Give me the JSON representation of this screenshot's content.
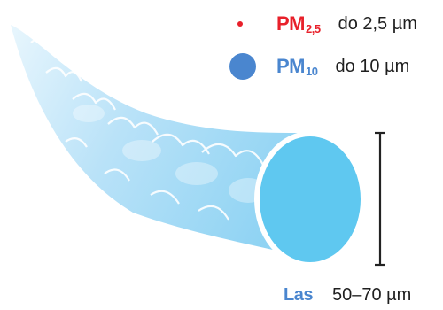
{
  "legend": {
    "pm25": {
      "label": "PM",
      "subscript": "2,5",
      "size_text": "do 2,5 µm",
      "color": "#e8202a"
    },
    "pm10": {
      "label": "PM",
      "subscript": "10",
      "size_text": "do 10 µm",
      "color": "#4a86cf"
    }
  },
  "hair": {
    "label": "Las",
    "size_text": "50–70 µm",
    "label_color": "#4a86cf",
    "fill_color": "#5fc8f0"
  }
}
